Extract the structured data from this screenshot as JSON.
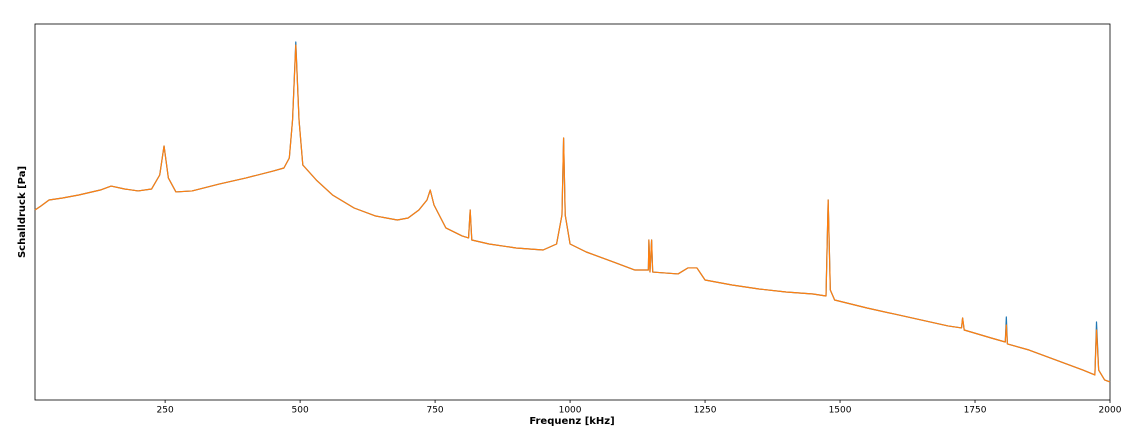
{
  "chart_data": {
    "type": "line",
    "xlabel": "Frequenz [kHz]",
    "ylabel": "Schalldruck [Pa]",
    "log_y": true,
    "xlim": [
      9,
      2000
    ],
    "xticks": [
      250,
      500,
      750,
      1000,
      1250,
      1500,
      1750,
      2000
    ],
    "ylim": [
      0.000278,
      63100
    ],
    "x": [
      9,
      20,
      35,
      60,
      90,
      130,
      150,
      175,
      200,
      225,
      240,
      248,
      256,
      270,
      300,
      350,
      400,
      450,
      470,
      480,
      486,
      492,
      498,
      505,
      530,
      560,
      600,
      640,
      680,
      700,
      720,
      735,
      741,
      748,
      770,
      800,
      812,
      815,
      818,
      850,
      900,
      950,
      975,
      985,
      988,
      991,
      1000,
      1030,
      1080,
      1120,
      1145,
      1146,
      1148,
      1151,
      1153,
      1200,
      1218,
      1235,
      1250,
      1300,
      1350,
      1400,
      1450,
      1474,
      1478,
      1482,
      1490,
      1550,
      1600,
      1650,
      1700,
      1725,
      1727,
      1730,
      1780,
      1806,
      1808,
      1810,
      1850,
      1900,
      1950,
      1972,
      1975,
      1979,
      1990,
      2000
    ],
    "series": [
      {
        "color": "#1f77b4",
        "values": [
          4.64,
          5.7,
          7.74,
          8.58,
          10,
          12.9,
          15.8,
          13.6,
          12.3,
          13.6,
          27.8,
          123,
          23.9,
          11.7,
          12.3,
          17.5,
          23.9,
          34.1,
          39.8,
          66.4,
          464,
          25100,
          464,
          46.4,
          21.5,
          10,
          5.14,
          3.41,
          2.78,
          3.08,
          4.64,
          7.74,
          12.9,
          6.0,
          1.85,
          1.23,
          1.11,
          4.64,
          1.0,
          0.815,
          0.664,
          0.599,
          0.815,
          3.59,
          185,
          3.59,
          0.815,
          0.541,
          0.325,
          0.215,
          0.215,
          1.0,
          0.194,
          1.0,
          0.194,
          0.176,
          0.239,
          0.239,
          0.129,
          0.1,
          0.0815,
          0.0699,
          0.0631,
          0.057,
          7.74,
          0.0774,
          0.0464,
          0.0308,
          0.0227,
          0.0167,
          0.0123,
          0.0111,
          0.0185,
          0.01,
          0.00664,
          0.00541,
          0.0195,
          0.00489,
          0.00359,
          0.00215,
          0.00129,
          0.001,
          0.0151,
          0.00129,
          0.000774,
          0.000699
        ]
      },
      {
        "color": "#ff7f0e",
        "values": [
          4.64,
          5.7,
          7.74,
          8.58,
          10,
          12.9,
          15.8,
          13.6,
          12.3,
          13.6,
          27.8,
          123,
          23.9,
          11.7,
          12.3,
          17.5,
          23.9,
          34.1,
          39.8,
          66.4,
          464,
          21500,
          464,
          46.4,
          21.5,
          10,
          5.14,
          3.41,
          2.78,
          3.08,
          4.64,
          7.74,
          12.9,
          6.0,
          1.85,
          1.23,
          1.11,
          4.64,
          1.0,
          0.815,
          0.664,
          0.599,
          0.815,
          3.59,
          185,
          3.59,
          0.815,
          0.541,
          0.325,
          0.215,
          0.215,
          1.0,
          0.194,
          1.0,
          0.194,
          0.176,
          0.239,
          0.239,
          0.129,
          0.1,
          0.0815,
          0.0699,
          0.0631,
          0.057,
          7.74,
          0.0774,
          0.0464,
          0.0308,
          0.0227,
          0.0167,
          0.0123,
          0.0111,
          0.0185,
          0.01,
          0.00664,
          0.00541,
          0.0129,
          0.00489,
          0.00359,
          0.00215,
          0.00129,
          0.001,
          0.01,
          0.00129,
          0.000774,
          0.000699
        ]
      }
    ]
  }
}
